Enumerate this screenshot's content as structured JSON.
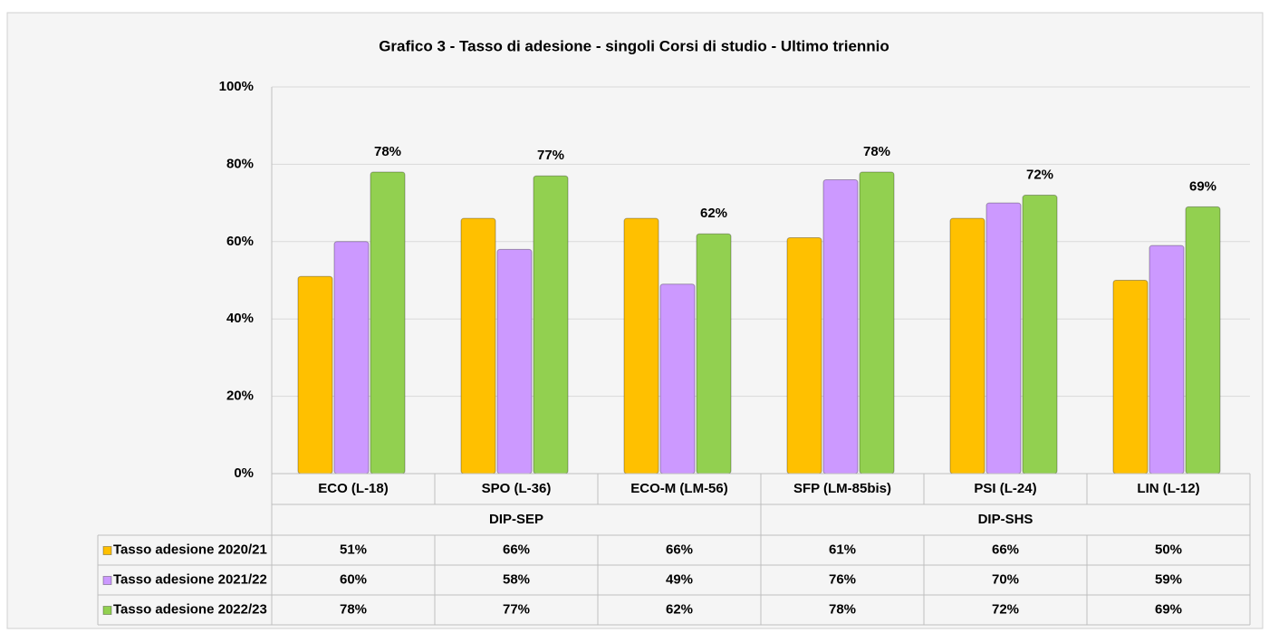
{
  "chart_data": {
    "type": "bar",
    "title": "Grafico 3 - Tasso di adesione - singoli Corsi di studio - Ultimo triennio",
    "categories": [
      "ECO (L-18)",
      "SPO (L-36)",
      "ECO-M (LM-56)",
      "SFP (LM-85bis)",
      "PSI (L-24)",
      "LIN (L-12)"
    ],
    "groups": [
      "DIP-SEP",
      "DIP-SHS"
    ],
    "series": [
      {
        "name": "Tasso adesione 2020/21",
        "color": "#ffc000",
        "values": [
          51,
          66,
          66,
          61,
          66,
          50
        ],
        "value_labels": [
          "51%",
          "66%",
          "66%",
          "61%",
          "66%",
          "50%"
        ]
      },
      {
        "name": "Tasso adesione 2021/22",
        "color": "#cc99ff",
        "values": [
          60,
          58,
          49,
          76,
          70,
          59
        ],
        "value_labels": [
          "60%",
          "58%",
          "49%",
          "76%",
          "70%",
          "59%"
        ]
      },
      {
        "name": "Tasso adesione 2022/23",
        "color": "#92d050",
        "values": [
          78,
          77,
          62,
          78,
          72,
          69
        ],
        "value_labels": [
          "78%",
          "77%",
          "62%",
          "78%",
          "72%",
          "69%"
        ],
        "show_labels": true
      }
    ],
    "ylim": [
      0,
      100
    ],
    "yticks": [
      {
        "value": 0,
        "label": "0%"
      },
      {
        "value": 20,
        "label": "20%"
      },
      {
        "value": 40,
        "label": "40%"
      },
      {
        "value": 60,
        "label": "60%"
      },
      {
        "value": 80,
        "label": "80%"
      },
      {
        "value": 100,
        "label": "100%"
      }
    ],
    "grid": true
  }
}
